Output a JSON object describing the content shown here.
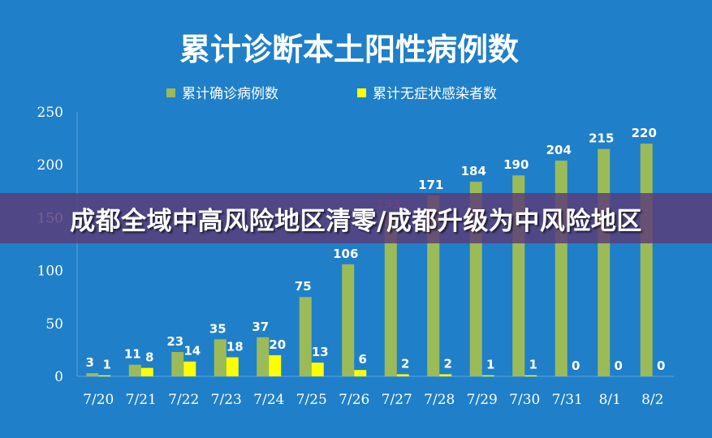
{
  "banner": {
    "text": "成都全域中高风险地区清零/成都升级为中风险地区"
  },
  "colors": {
    "background": "#1f7fc8",
    "confirmed": "#9bbb59",
    "asymptomatic": "#ffff00",
    "banner": "#5c3a78"
  },
  "chart_data": {
    "type": "bar",
    "title": "累计诊断本土阳性病例数",
    "categories": [
      "7/20",
      "7/21",
      "7/22",
      "7/23",
      "7/24",
      "7/25",
      "7/26",
      "7/27",
      "7/28",
      "7/29",
      "7/30",
      "7/31",
      "8/1",
      "8/2"
    ],
    "series": [
      {
        "name": "累计确诊病例数",
        "color": "#9bbb59",
        "values": [
          3,
          11,
          23,
          35,
          37,
          75,
          106,
          153,
          171,
          184,
          190,
          204,
          215,
          220
        ]
      },
      {
        "name": "累计无症状感染者数",
        "color": "#ffff00",
        "values": [
          1,
          8,
          14,
          18,
          20,
          13,
          6,
          2,
          2,
          1,
          1,
          0,
          0,
          0
        ]
      }
    ],
    "ylim": [
      0,
      250
    ],
    "yticks": [
      0,
      50,
      100,
      150,
      200,
      250
    ],
    "xlabel": "",
    "ylabel": "",
    "legend": "top",
    "grid": false,
    "data_labels": true
  }
}
